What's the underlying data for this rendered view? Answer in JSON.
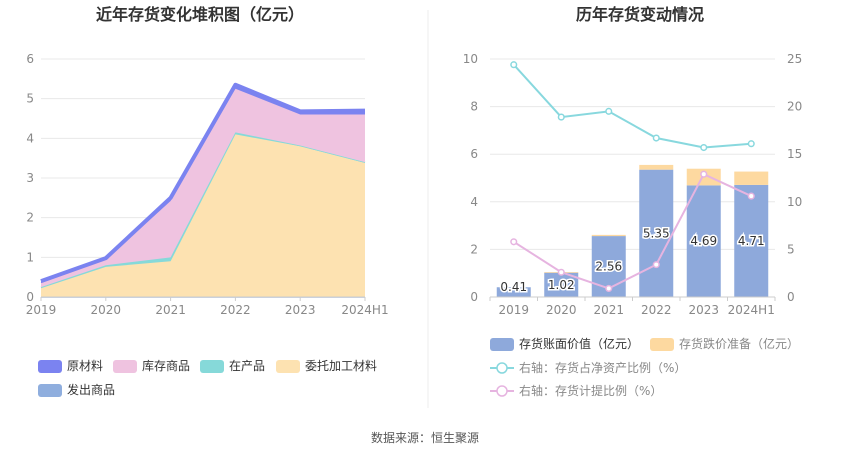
{
  "source": "数据来源：恒生聚源",
  "colors": {
    "raw": "#7b83f0",
    "stock": "#efc3e0",
    "wip": "#86d9d9",
    "consign": "#fde2b1",
    "shipped": "#8faede",
    "book_bar": "#8ea9db",
    "impair_bar": "#fdd9a0",
    "line_ratio": "#88d8de",
    "line_provision": "#e6b4e0"
  },
  "chart_data": [
    {
      "type": "area",
      "title": "近年存货变化堆积图（亿元）",
      "categories": [
        "2019",
        "2020",
        "2021",
        "2022",
        "2023",
        "2024H1"
      ],
      "ylim": [
        0,
        6
      ],
      "yticks": [
        "0",
        "1",
        "2",
        "3",
        "4",
        "5",
        "6"
      ],
      "stacked": true,
      "series": [
        {
          "name": "发出商品",
          "values": [
            0.0,
            0.0,
            0.0,
            0.0,
            0.0,
            0.0
          ]
        },
        {
          "name": "委托加工材料",
          "values": [
            0.22,
            0.76,
            0.9,
            4.1,
            3.8,
            3.38
          ]
        },
        {
          "name": "在产品",
          "values": [
            0.03,
            0.04,
            0.1,
            0.05,
            0.02,
            0.02
          ]
        },
        {
          "name": "库存商品",
          "values": [
            0.1,
            0.14,
            1.42,
            1.1,
            0.78,
            1.2
          ]
        },
        {
          "name": "原材料",
          "values": [
            0.05,
            0.04,
            0.08,
            0.1,
            0.08,
            0.1
          ]
        }
      ],
      "legend": [
        {
          "name": "原材料",
          "color": "#7b83f0"
        },
        {
          "name": "库存商品",
          "color": "#efc3e0"
        },
        {
          "name": "在产品",
          "color": "#86d9d9"
        },
        {
          "name": "委托加工材料",
          "color": "#fde2b1"
        },
        {
          "name": "发出商品",
          "color": "#8faede"
        }
      ],
      "legend_position": "bottom-left"
    },
    {
      "type": "bar",
      "title": "历年存货变动情况",
      "categories": [
        "2019",
        "2020",
        "2021",
        "2022",
        "2023",
        "2024H1"
      ],
      "ylim_left": [
        0,
        10
      ],
      "yticks_left": [
        "0",
        "2",
        "4",
        "6",
        "8",
        "10"
      ],
      "ylim_right": [
        0,
        25
      ],
      "yticks_right": [
        "0",
        "5",
        "10",
        "15",
        "20",
        "25"
      ],
      "series": [
        {
          "name": "存货账面价值（亿元）",
          "kind": "bar",
          "values": [
            0.41,
            1.02,
            2.56,
            5.35,
            4.69,
            4.71
          ],
          "labels": [
            "0.41",
            "1.02",
            "2.56",
            "5.35",
            "4.69",
            "4.71"
          ]
        },
        {
          "name": "存货跌价准备（亿元）",
          "kind": "bar-stacked",
          "values": [
            0.0,
            0.03,
            0.05,
            0.2,
            0.7,
            0.56
          ]
        },
        {
          "name": "右轴：存货占净资产比例（%）",
          "kind": "line",
          "axis": "right",
          "values": [
            24.4,
            18.9,
            19.5,
            16.7,
            15.7,
            16.1
          ]
        },
        {
          "name": "右轴：存货计提比例（%）",
          "kind": "line",
          "axis": "right",
          "values": [
            5.8,
            2.6,
            0.9,
            3.4,
            12.9,
            10.6
          ]
        }
      ],
      "legend_position": "bottom"
    }
  ]
}
